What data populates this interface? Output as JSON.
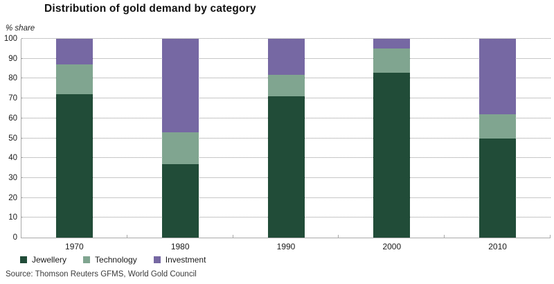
{
  "title": "Distribution of gold demand by category",
  "y_axis_note": "% share",
  "source": "Source: Thomson Reuters GFMS, World Gold Council",
  "colors": {
    "jewellery": "#214C38",
    "technology": "#80A590",
    "investment": "#7668A3",
    "axis": "#a9a9a9",
    "gridline": "#8f8f8f"
  },
  "chart_data": {
    "type": "bar",
    "stacked": true,
    "title": "Distribution of gold demand by category",
    "categories": [
      "1970",
      "1980",
      "1990",
      "2000",
      "2010"
    ],
    "series": [
      {
        "name": "Jewellery",
        "color": "#214C38",
        "values": [
          72,
          37,
          71,
          83,
          50
        ]
      },
      {
        "name": "Technology",
        "color": "#80A590",
        "values": [
          15,
          16,
          11,
          12,
          12
        ]
      },
      {
        "name": "Investment",
        "color": "#7668A3",
        "values": [
          13,
          47,
          18,
          5,
          38
        ]
      }
    ],
    "xlabel": "",
    "ylabel": "% share",
    "ylim": [
      0,
      100
    ],
    "yticks": [
      0,
      10,
      20,
      30,
      40,
      50,
      60,
      70,
      80,
      90,
      100
    ],
    "grid": "horizontal-dotted",
    "legend_position": "bottom-left"
  }
}
